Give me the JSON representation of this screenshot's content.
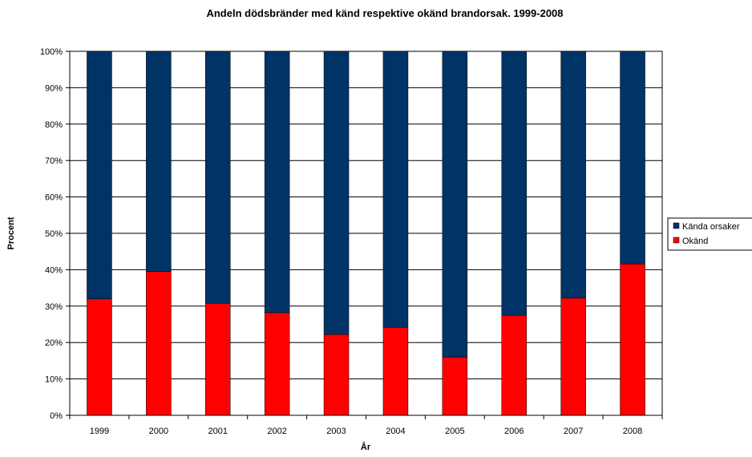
{
  "chart_data": {
    "type": "bar",
    "stacked": true,
    "percent_stacked": true,
    "title": "Andeln dödsbränder med känd respektive okänd brandorsak. 1999-2008",
    "xlabel": "År",
    "ylabel": "Procent",
    "categories": [
      "1999",
      "2000",
      "2001",
      "2002",
      "2003",
      "2004",
      "2005",
      "2006",
      "2007",
      "2008"
    ],
    "ylim": [
      0,
      100
    ],
    "yticks": [
      "0%",
      "10%",
      "20%",
      "30%",
      "40%",
      "50%",
      "60%",
      "70%",
      "80%",
      "90%",
      "100%"
    ],
    "series": [
      {
        "name": "Okänd",
        "color": "#ff0000",
        "values": [
          32,
          39.5,
          30.8,
          28.2,
          22.2,
          24.2,
          16,
          27.5,
          32.2,
          41.6
        ]
      },
      {
        "name": "Kända orsaker",
        "color": "#003366",
        "values": [
          68,
          60.5,
          69.2,
          71.8,
          77.8,
          75.8,
          84,
          72.5,
          67.8,
          58.4
        ]
      }
    ],
    "legend_position": "right",
    "grid": true
  }
}
